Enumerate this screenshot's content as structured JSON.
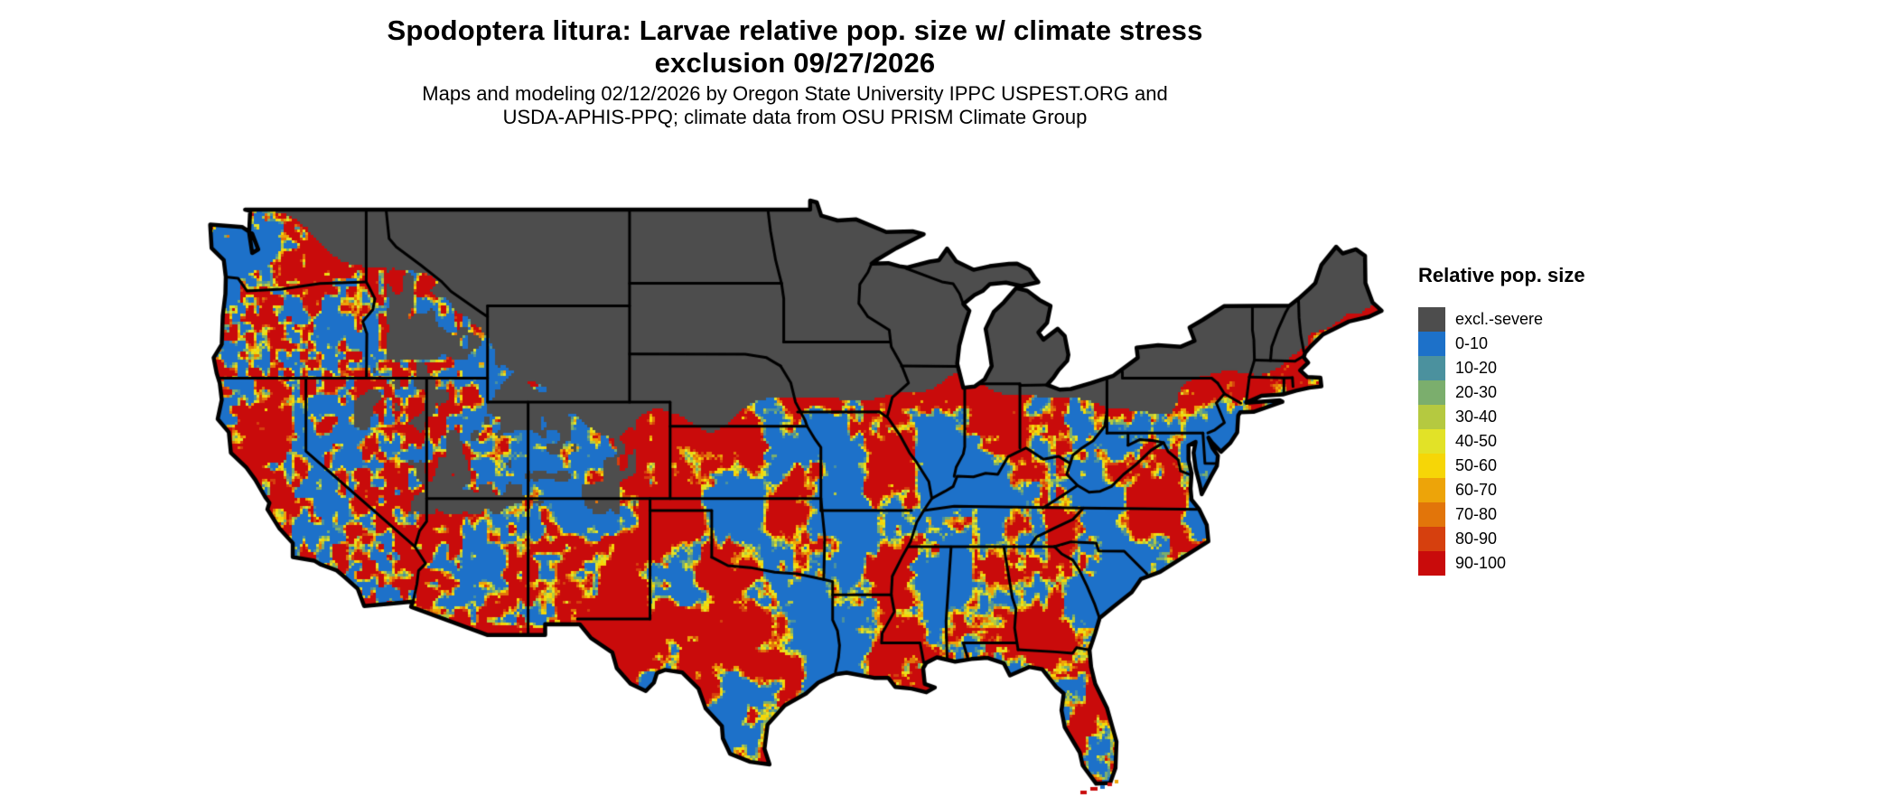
{
  "header": {
    "title_line1": "Spodoptera litura: Larvae relative pop. size w/ climate stress",
    "title_line2": "exclusion 09/27/2026",
    "subtitle_line1": "Maps and modeling 02/12/2026 by Oregon State University IPPC USPEST.ORG and",
    "subtitle_line2": "USDA-APHIS-PPQ; climate data from OSU PRISM Climate Group"
  },
  "legend": {
    "title": "Relative pop. size",
    "entries": [
      {
        "label": "excl.-severe",
        "color": "#4d4d4d"
      },
      {
        "label": "0-10",
        "color": "#1d71c9"
      },
      {
        "label": "10-20",
        "color": "#4b919e"
      },
      {
        "label": "20-30",
        "color": "#7bae6d"
      },
      {
        "label": "30-40",
        "color": "#b5c940"
      },
      {
        "label": "40-50",
        "color": "#e2e227"
      },
      {
        "label": "50-60",
        "color": "#f6d607"
      },
      {
        "label": "60-70",
        "color": "#eda409"
      },
      {
        "label": "70-80",
        "color": "#e2750a"
      },
      {
        "label": "80-90",
        "color": "#d6400e"
      },
      {
        "label": "90-100",
        "color": "#c90b0b"
      }
    ]
  },
  "map": {
    "region": "Contiguous United States",
    "water_color": "#ffffff",
    "boundary_color": "#000000"
  }
}
